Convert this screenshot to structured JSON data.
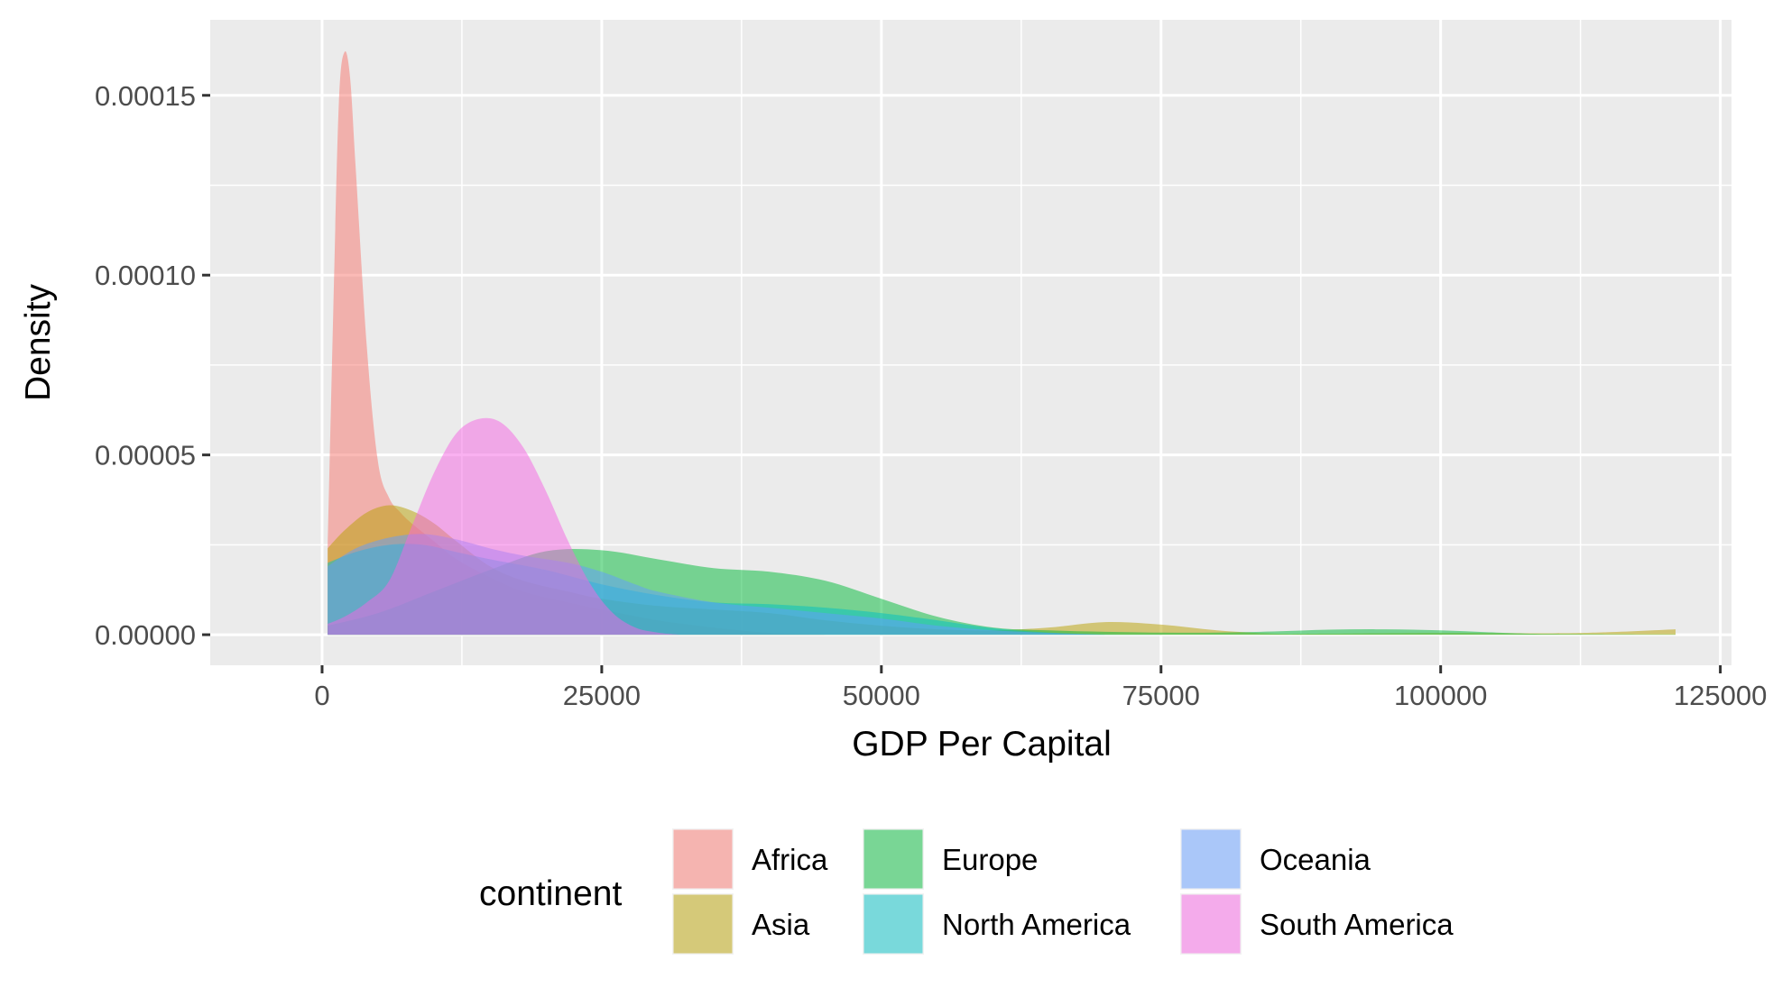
{
  "chart_data": {
    "type": "area",
    "xlabel": "GDP Per Capital",
    "ylabel": "Density",
    "xlim": [
      -10000,
      126000
    ],
    "ylim": [
      -8.5e-06,
      0.000171
    ],
    "x_ticks": [
      0,
      25000,
      50000,
      75000,
      100000,
      125000
    ],
    "x_tick_labels": [
      "0",
      "25000",
      "50000",
      "75000",
      "100000",
      "125000"
    ],
    "y_ticks": [
      0,
      5e-05,
      0.0001,
      0.00015
    ],
    "y_tick_labels": [
      "0.00000",
      "0.00005",
      "0.00010",
      "0.00015"
    ],
    "grid": true,
    "panel_background": "#EBEBEB",
    "grid_color": "#FFFFFF",
    "fill_opacity": 0.5,
    "legend": {
      "title": "continent",
      "position": "bottom",
      "ncol": 3
    },
    "series": [
      {
        "name": "Africa",
        "color": "#F8766D",
        "points": [
          [
            500,
            2.5e-05
          ],
          [
            1000,
            9e-05
          ],
          [
            1500,
            0.000148
          ],
          [
            2000,
            0.000162
          ],
          [
            2500,
            0.000155
          ],
          [
            3000,
            0.00013
          ],
          [
            4000,
            8e-05
          ],
          [
            5000,
            4.8e-05
          ],
          [
            6000,
            3.8e-05
          ],
          [
            7000,
            3.4e-05
          ],
          [
            8000,
            3.1e-05
          ],
          [
            10000,
            2.6e-05
          ],
          [
            12000,
            2.1e-05
          ],
          [
            15000,
            1.6e-05
          ],
          [
            18000,
            1.2e-05
          ],
          [
            22000,
            9e-06
          ],
          [
            25000,
            7e-06
          ],
          [
            30000,
            4e-06
          ],
          [
            35000,
            2e-06
          ],
          [
            40000,
            5e-07
          ],
          [
            45000,
            0
          ]
        ]
      },
      {
        "name": "Asia",
        "color": "#B79F00",
        "points": [
          [
            500,
            2.4e-05
          ],
          [
            2000,
            2.9e-05
          ],
          [
            4000,
            3.4e-05
          ],
          [
            6000,
            3.6e-05
          ],
          [
            8000,
            3.45e-05
          ],
          [
            10000,
            3.1e-05
          ],
          [
            12000,
            2.6e-05
          ],
          [
            15000,
            1.9e-05
          ],
          [
            18000,
            1.5e-05
          ],
          [
            22000,
            1.2e-05
          ],
          [
            25000,
            1e-05
          ],
          [
            30000,
            8e-06
          ],
          [
            35000,
            7e-06
          ],
          [
            40000,
            6e-06
          ],
          [
            45000,
            4e-06
          ],
          [
            50000,
            2.5e-06
          ],
          [
            55000,
            1.5e-06
          ],
          [
            60000,
            1.2e-06
          ],
          [
            65000,
            2e-06
          ],
          [
            70000,
            3.5e-06
          ],
          [
            75000,
            2.8e-06
          ],
          [
            80000,
            1.2e-06
          ],
          [
            85000,
            3e-07
          ],
          [
            90000,
            3e-07
          ],
          [
            100000,
            5e-07
          ],
          [
            110000,
            4e-07
          ],
          [
            115000,
            7e-07
          ],
          [
            121000,
            1.5e-06
          ]
        ]
      },
      {
        "name": "Europe",
        "color": "#00BA38",
        "points": [
          [
            500,
            2.5e-06
          ],
          [
            5000,
            6e-06
          ],
          [
            10000,
            1.2e-05
          ],
          [
            15000,
            1.8e-05
          ],
          [
            20000,
            2.32e-05
          ],
          [
            25000,
            2.35e-05
          ],
          [
            30000,
            2.1e-05
          ],
          [
            35000,
            1.85e-05
          ],
          [
            40000,
            1.75e-05
          ],
          [
            45000,
            1.5e-05
          ],
          [
            50000,
            1e-05
          ],
          [
            55000,
            5e-06
          ],
          [
            60000,
            2e-06
          ],
          [
            65000,
            1.2e-06
          ],
          [
            70000,
            8e-07
          ],
          [
            75000,
            6e-07
          ],
          [
            80000,
            6e-07
          ],
          [
            85000,
            9e-07
          ],
          [
            90000,
            1.4e-06
          ],
          [
            95000,
            1.5e-06
          ],
          [
            100000,
            1.2e-06
          ],
          [
            105000,
            6e-07
          ],
          [
            110000,
            2e-07
          ],
          [
            121000,
            1e-07
          ]
        ]
      },
      {
        "name": "North America",
        "color": "#00BFC4",
        "points": [
          [
            500,
            2e-05
          ],
          [
            3000,
            2.3e-05
          ],
          [
            6000,
            2.5e-05
          ],
          [
            9000,
            2.5e-05
          ],
          [
            12000,
            2.3e-05
          ],
          [
            15000,
            2.1e-05
          ],
          [
            20000,
            1.8e-05
          ],
          [
            25000,
            1.4e-05
          ],
          [
            30000,
            1.1e-05
          ],
          [
            35000,
            9e-06
          ],
          [
            40000,
            8.5e-06
          ],
          [
            45000,
            7.5e-06
          ],
          [
            50000,
            6e-06
          ],
          [
            55000,
            4e-06
          ],
          [
            60000,
            1.8e-06
          ],
          [
            65000,
            6e-07
          ],
          [
            70000,
            1e-07
          ],
          [
            75000,
            0
          ]
        ]
      },
      {
        "name": "Oceania",
        "color": "#619CFF",
        "points": [
          [
            500,
            1.9e-05
          ],
          [
            3000,
            2.4e-05
          ],
          [
            6000,
            2.7e-05
          ],
          [
            9000,
            2.8e-05
          ],
          [
            12000,
            2.65e-05
          ],
          [
            15000,
            2.4e-05
          ],
          [
            18000,
            2.2e-05
          ],
          [
            22000,
            2e-05
          ],
          [
            25000,
            1.75e-05
          ],
          [
            28000,
            1.4e-05
          ],
          [
            30000,
            1.2e-05
          ],
          [
            35000,
            9e-06
          ],
          [
            40000,
            7.5e-06
          ],
          [
            45000,
            6e-06
          ],
          [
            50000,
            4.5e-06
          ],
          [
            55000,
            2.5e-06
          ],
          [
            60000,
            1.2e-06
          ],
          [
            65000,
            5e-07
          ],
          [
            70000,
            0
          ]
        ]
      },
      {
        "name": "South America",
        "color": "#F564E3",
        "points": [
          [
            500,
            3e-06
          ],
          [
            2000,
            5e-06
          ],
          [
            4000,
            9e-06
          ],
          [
            6000,
            1.5e-05
          ],
          [
            8000,
            3e-05
          ],
          [
            10000,
            4.5e-05
          ],
          [
            12000,
            5.6e-05
          ],
          [
            14000,
            6e-05
          ],
          [
            16000,
            5.9e-05
          ],
          [
            18000,
            5.2e-05
          ],
          [
            20000,
            4e-05
          ],
          [
            22000,
            2.6e-05
          ],
          [
            24000,
            1.4e-05
          ],
          [
            26000,
            6e-06
          ],
          [
            28000,
            2e-06
          ],
          [
            30000,
            6e-07
          ],
          [
            32000,
            0
          ]
        ]
      }
    ]
  }
}
